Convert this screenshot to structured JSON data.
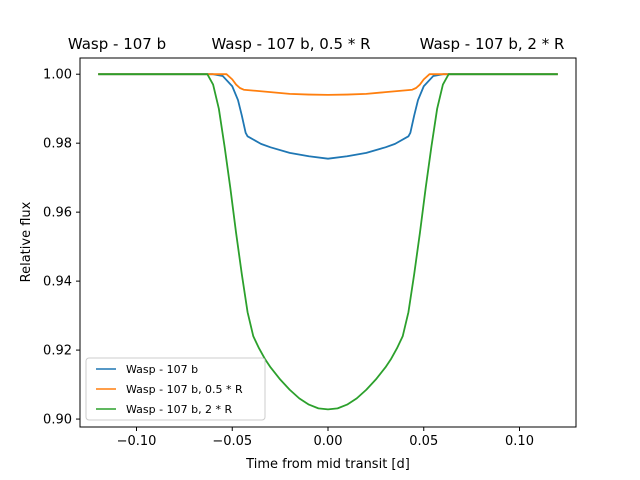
{
  "chart_data": {
    "type": "line",
    "titles": [
      "Wasp - 107 b",
      "Wasp - 107 b, 0.5 * R",
      "Wasp - 107 b, 2 * R"
    ],
    "xlabel": "Time from mid transit [d]",
    "ylabel": "Relative flux",
    "xlim": [
      -0.1295,
      0.1295
    ],
    "ylim": [
      0.8977,
      1.0047
    ],
    "xticks": [
      -0.1,
      -0.05,
      0.0,
      0.05,
      0.1
    ],
    "xtick_labels": [
      "−0.10",
      "−0.05",
      "0.00",
      "0.05",
      "0.10"
    ],
    "yticks": [
      0.9,
      0.92,
      0.94,
      0.96,
      0.98,
      1.0
    ],
    "ytick_labels": [
      "0.90",
      "0.92",
      "0.94",
      "0.96",
      "0.98",
      "1.00"
    ],
    "grid": false,
    "legend_position": "lower-left",
    "series": [
      {
        "name": "Wasp - 107 b",
        "color": "#1f77b4",
        "points": [
          [
            -0.12,
            1.0
          ],
          [
            -0.06,
            1.0
          ],
          [
            -0.055,
            0.9995
          ],
          [
            -0.05,
            0.9965
          ],
          [
            -0.047,
            0.9925
          ],
          [
            -0.045,
            0.988
          ],
          [
            -0.043,
            0.983
          ],
          [
            -0.042,
            0.982
          ],
          [
            -0.035,
            0.9798
          ],
          [
            -0.03,
            0.9788
          ],
          [
            -0.02,
            0.9772
          ],
          [
            -0.01,
            0.9762
          ],
          [
            0.0,
            0.9755
          ],
          [
            0.01,
            0.9762
          ],
          [
            0.02,
            0.9772
          ],
          [
            0.03,
            0.9788
          ],
          [
            0.035,
            0.9798
          ],
          [
            0.042,
            0.982
          ],
          [
            0.043,
            0.983
          ],
          [
            0.045,
            0.988
          ],
          [
            0.047,
            0.9925
          ],
          [
            0.05,
            0.9965
          ],
          [
            0.055,
            0.9995
          ],
          [
            0.06,
            1.0
          ],
          [
            0.12,
            1.0
          ]
        ]
      },
      {
        "name": "Wasp - 107 b, 0.5 * R",
        "color": "#ff7f0e",
        "points": [
          [
            -0.12,
            1.0
          ],
          [
            -0.053,
            1.0
          ],
          [
            -0.05,
            0.9985
          ],
          [
            -0.048,
            0.997
          ],
          [
            -0.046,
            0.996
          ],
          [
            -0.044,
            0.9955
          ],
          [
            -0.03,
            0.9948
          ],
          [
            -0.02,
            0.9943
          ],
          [
            -0.01,
            0.9941
          ],
          [
            0.0,
            0.994
          ],
          [
            0.01,
            0.9941
          ],
          [
            0.02,
            0.9943
          ],
          [
            0.03,
            0.9948
          ],
          [
            0.044,
            0.9955
          ],
          [
            0.046,
            0.996
          ],
          [
            0.048,
            0.997
          ],
          [
            0.05,
            0.9985
          ],
          [
            0.053,
            1.0
          ],
          [
            0.12,
            1.0
          ]
        ]
      },
      {
        "name": "Wasp - 107 b, 2 * R",
        "color": "#2ca02c",
        "points": [
          [
            -0.12,
            1.0
          ],
          [
            -0.063,
            1.0
          ],
          [
            -0.06,
            0.997
          ],
          [
            -0.057,
            0.99
          ],
          [
            -0.054,
            0.979
          ],
          [
            -0.051,
            0.967
          ],
          [
            -0.048,
            0.954
          ],
          [
            -0.045,
            0.942
          ],
          [
            -0.042,
            0.931
          ],
          [
            -0.039,
            0.924
          ],
          [
            -0.036,
            0.9205
          ],
          [
            -0.033,
            0.9175
          ],
          [
            -0.03,
            0.915
          ],
          [
            -0.025,
            0.9115
          ],
          [
            -0.02,
            0.9085
          ],
          [
            -0.015,
            0.906
          ],
          [
            -0.01,
            0.9042
          ],
          [
            -0.005,
            0.9031
          ],
          [
            0.0,
            0.9028
          ],
          [
            0.005,
            0.9031
          ],
          [
            0.01,
            0.9042
          ],
          [
            0.015,
            0.906
          ],
          [
            0.02,
            0.9085
          ],
          [
            0.025,
            0.9115
          ],
          [
            0.03,
            0.915
          ],
          [
            0.033,
            0.9175
          ],
          [
            0.036,
            0.9205
          ],
          [
            0.039,
            0.924
          ],
          [
            0.042,
            0.931
          ],
          [
            0.045,
            0.942
          ],
          [
            0.048,
            0.954
          ],
          [
            0.051,
            0.967
          ],
          [
            0.054,
            0.979
          ],
          [
            0.057,
            0.99
          ],
          [
            0.06,
            0.997
          ],
          [
            0.063,
            1.0
          ],
          [
            0.12,
            1.0
          ]
        ]
      }
    ]
  }
}
